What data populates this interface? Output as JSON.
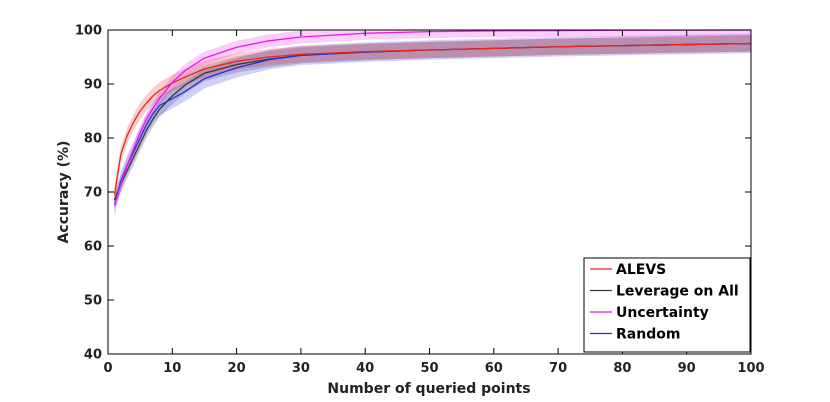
{
  "chart_data": {
    "type": "line",
    "xlabel": "Number of queried points",
    "ylabel": "Accuracy (%)",
    "xlim": [
      0,
      100
    ],
    "ylim": [
      40,
      100
    ],
    "xticks": [
      0,
      10,
      20,
      30,
      40,
      50,
      60,
      70,
      80,
      90,
      100
    ],
    "yticks": [
      40,
      50,
      60,
      70,
      80,
      90,
      100
    ],
    "grid": false,
    "legend_position": "bottom-right",
    "x": [
      1,
      2,
      3,
      4,
      5,
      6,
      7,
      8,
      10,
      12,
      15,
      20,
      25,
      30,
      40,
      50,
      60,
      70,
      80,
      90,
      100
    ],
    "series": [
      {
        "name": "ALEVS",
        "color": "#e8261b",
        "values": [
          69.5,
          77,
          80.5,
          83,
          85,
          86.5,
          87.8,
          88.8,
          90.2,
          91.3,
          92.8,
          94.2,
          95,
          95.5,
          96,
          96.3,
          96.6,
          96.9,
          97.1,
          97.3,
          97.5
        ],
        "band": 1.5
      },
      {
        "name": "Leverage on All",
        "color": "#3a3a3a",
        "values": [
          68.5,
          71.5,
          74,
          76.5,
          79,
          81.5,
          83.5,
          85.3,
          87.8,
          89.8,
          92,
          93.6,
          94.6,
          95.3,
          95.9,
          96.3,
          96.6,
          96.9,
          97.1,
          97.3,
          97.5
        ],
        "band": 1.5
      },
      {
        "name": "Uncertainty",
        "color": "#e61ae6",
        "values": [
          67.5,
          71.5,
          75,
          78,
          81,
          83.5,
          85.5,
          87.3,
          90.3,
          92.5,
          94.8,
          96.8,
          98,
          98.7,
          99.4,
          99.7,
          99.85,
          99.9,
          99.95,
          99.97,
          100
        ],
        "band": 1.2
      },
      {
        "name": "Random",
        "color": "#2b2be0",
        "values": [
          67.5,
          72,
          75,
          77.5,
          80,
          82.5,
          84.5,
          86,
          87.3,
          88.6,
          91,
          93,
          94.5,
          95.3,
          95.9,
          96.3,
          96.6,
          96.9,
          97.1,
          97.3,
          97.5
        ],
        "band": 1.8
      }
    ]
  }
}
